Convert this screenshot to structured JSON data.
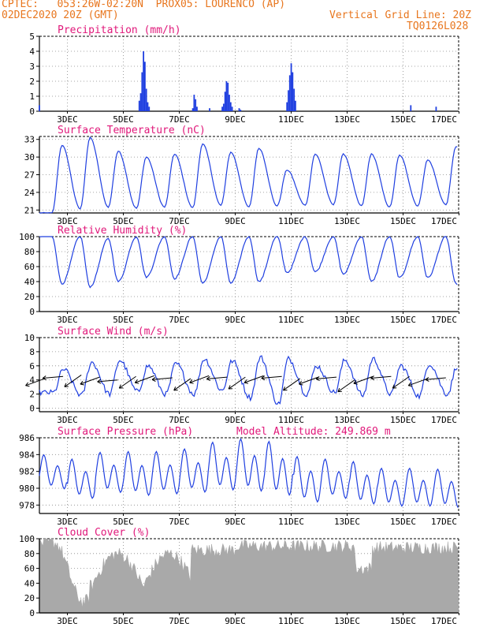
{
  "header": {
    "line1": "CPTEC:   053:26W-02:20N  PROX05: LOURENCO (AP)",
    "line2_left": "02DEC2020 20Z (GMT)",
    "line2_right": "Vertical Grid Line: 20Z",
    "line3_right": "TQ0126L028",
    "color": "#e8761e",
    "title_color": "#e0187a",
    "line_color": "#1f3fe0",
    "cloud_color": "#a9a9a9"
  },
  "x_ticks": [
    "3DEC",
    "5DEC",
    "7DEC",
    "9DEC",
    "11DEC",
    "13DEC",
    "15DEC",
    "17DEC"
  ],
  "extra_label": "Model Altitude: 249.869 m",
  "chart_data": [
    {
      "type": "bar",
      "title": "Precipitation (mm/h)",
      "ylim": [
        0,
        5
      ],
      "yticks": [
        0,
        1,
        2,
        3,
        4,
        5
      ],
      "x_unit": "days since 02DEC2020 20Z",
      "x": [
        0.0,
        3.55,
        3.6,
        3.65,
        3.7,
        3.75,
        3.8,
        3.85,
        3.9,
        5.45,
        5.5,
        5.55,
        5.6,
        6.05,
        6.5,
        6.55,
        6.6,
        6.65,
        6.7,
        6.75,
        6.8,
        6.85,
        7.1,
        7.15,
        8.8,
        8.85,
        8.9,
        8.95,
        9.0,
        9.05,
        9.1,
        13.2,
        14.1
      ],
      "values": [
        0.4,
        0.7,
        1.2,
        2.6,
        4.0,
        3.3,
        1.5,
        0.6,
        0.3,
        0.2,
        1.1,
        0.8,
        0.3,
        0.2,
        0.3,
        0.5,
        1.3,
        2.0,
        1.9,
        1.1,
        0.6,
        0.3,
        0.2,
        0.1,
        0.6,
        1.4,
        2.4,
        3.2,
        2.6,
        1.5,
        0.7,
        0.4,
        0.3
      ]
    },
    {
      "type": "line",
      "title": "Surface Temperature (nC)",
      "ylim": [
        20.5,
        33.5
      ],
      "yticks": [
        21,
        24,
        27,
        30,
        33
      ],
      "x_unit": "days since 02DEC2020 20Z",
      "daily_min": [
        20.5,
        21.2,
        21.5,
        21.3,
        21.5,
        21.4,
        21.8,
        21.5,
        21.7,
        21.8,
        21.9,
        21.7,
        21.5,
        21.7,
        21.9
      ],
      "daily_max": [
        32.0,
        33.3,
        31.0,
        30.0,
        30.5,
        32.2,
        30.8,
        31.5,
        27.8,
        30.5,
        30.5,
        30.5,
        30.3,
        29.5,
        31.7
      ],
      "series": [
        {
          "values_note": "",
          "values": []
        }
      ]
    },
    {
      "type": "line",
      "title": "Relative Humidity (%)",
      "ylim": [
        0,
        100
      ],
      "yticks": [
        0,
        20,
        40,
        60,
        80,
        100
      ],
      "daily_min": [
        37,
        33,
        40,
        46,
        44,
        38,
        38,
        40,
        52,
        53,
        50,
        40,
        45,
        45,
        37
      ],
      "daily_max": [
        100,
        100,
        97,
        100,
        100,
        100,
        100,
        100,
        100,
        100,
        100,
        100,
        100,
        100,
        100
      ]
    },
    {
      "type": "line",
      "title": "Surface Wind (m/s)",
      "ylim": [
        -0.5,
        10
      ],
      "yticks": [
        0,
        2,
        4,
        6,
        8,
        10
      ],
      "daily_min": [
        2.2,
        1.8,
        2.0,
        2.3,
        2.0,
        2.0,
        2.5,
        1.5,
        0.6,
        2.0,
        2.2,
        1.8,
        2.0,
        1.7,
        2.0
      ],
      "daily_max": [
        5.5,
        6.5,
        6.8,
        6.0,
        6.3,
        7.0,
        6.7,
        7.2,
        7.0,
        6.0,
        6.8,
        7.0,
        6.0,
        6.3,
        6.0
      ],
      "arrows_speed": [
        4.2,
        4.5,
        4.7,
        4.4,
        4.0,
        4.5,
        4.6,
        4.3,
        4.2,
        4.6,
        4.4,
        4.4,
        4.6,
        4.5,
        4.2,
        4.4,
        4.4,
        4.0,
        4.5,
        4.5,
        4.5,
        4.2,
        4.3
      ]
    },
    {
      "type": "line",
      "title": "Surface Pressure (hPa)",
      "ylim": [
        977,
        986
      ],
      "yticks": [
        978,
        980,
        982,
        984,
        986
      ],
      "daily_high": [
        984.0,
        983.5,
        984.3,
        984.4,
        984.4,
        984.7,
        985.5,
        985.9,
        985.6,
        983.8,
        983.5,
        983.2,
        982.4,
        982.4,
        982.3
      ],
      "daily_low": [
        979.5,
        978.3,
        979.0,
        978.6,
        978.8,
        979.0,
        979.2,
        979.0,
        978.5,
        977.8,
        978.3,
        977.6,
        977.4,
        977.4,
        977.2
      ]
    },
    {
      "type": "area",
      "title": "Cloud Cover (%)",
      "ylim": [
        0,
        100
      ],
      "yticks": [
        0,
        20,
        40,
        60,
        80,
        100
      ]
    }
  ]
}
